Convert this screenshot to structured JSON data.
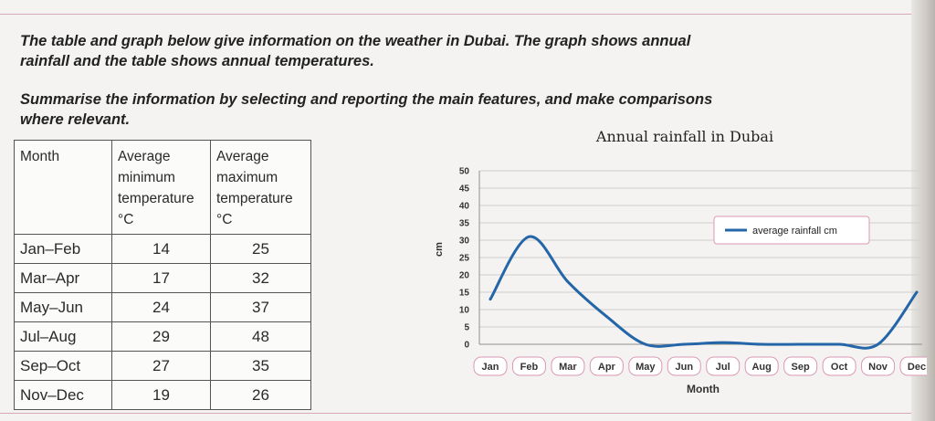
{
  "prompt": {
    "line1": "The table and graph below give information on the weather in Dubai. The graph shows annual rainfall and the table shows annual temperatures.",
    "line2": "Summarise the information by selecting and reporting the main features, and make comparisons where relevant."
  },
  "table": {
    "headers": [
      "Month",
      "Average minimum temperature °C",
      "Average maximum temperature °C"
    ],
    "rows": [
      [
        "Jan–Feb",
        "14",
        "25"
      ],
      [
        "Mar–Apr",
        "17",
        "32"
      ],
      [
        "May–Jun",
        "24",
        "37"
      ],
      [
        "Jul–Aug",
        "29",
        "48"
      ],
      [
        "Sep–Oct",
        "27",
        "35"
      ],
      [
        "Nov–Dec",
        "19",
        "26"
      ]
    ]
  },
  "chart_data": {
    "type": "line",
    "title": "Annual rainfall in Dubai",
    "xlabel": "Month",
    "ylabel": "cm",
    "categories": [
      "Jan",
      "Feb",
      "Mar",
      "Apr",
      "May",
      "Jun",
      "Jul",
      "Aug",
      "Sep",
      "Oct",
      "Nov",
      "Dec"
    ],
    "series": [
      {
        "name": "average rainfall cm",
        "values": [
          13,
          31,
          18,
          8,
          0,
          0,
          0.5,
          0,
          0,
          0,
          0,
          15
        ]
      }
    ],
    "yticks": [
      0,
      5,
      10,
      15,
      20,
      25,
      30,
      35,
      40,
      45,
      50
    ],
    "ylim": [
      0,
      50
    ],
    "grid": true,
    "legend_position": "top-right",
    "line_color": "#2466a8"
  }
}
